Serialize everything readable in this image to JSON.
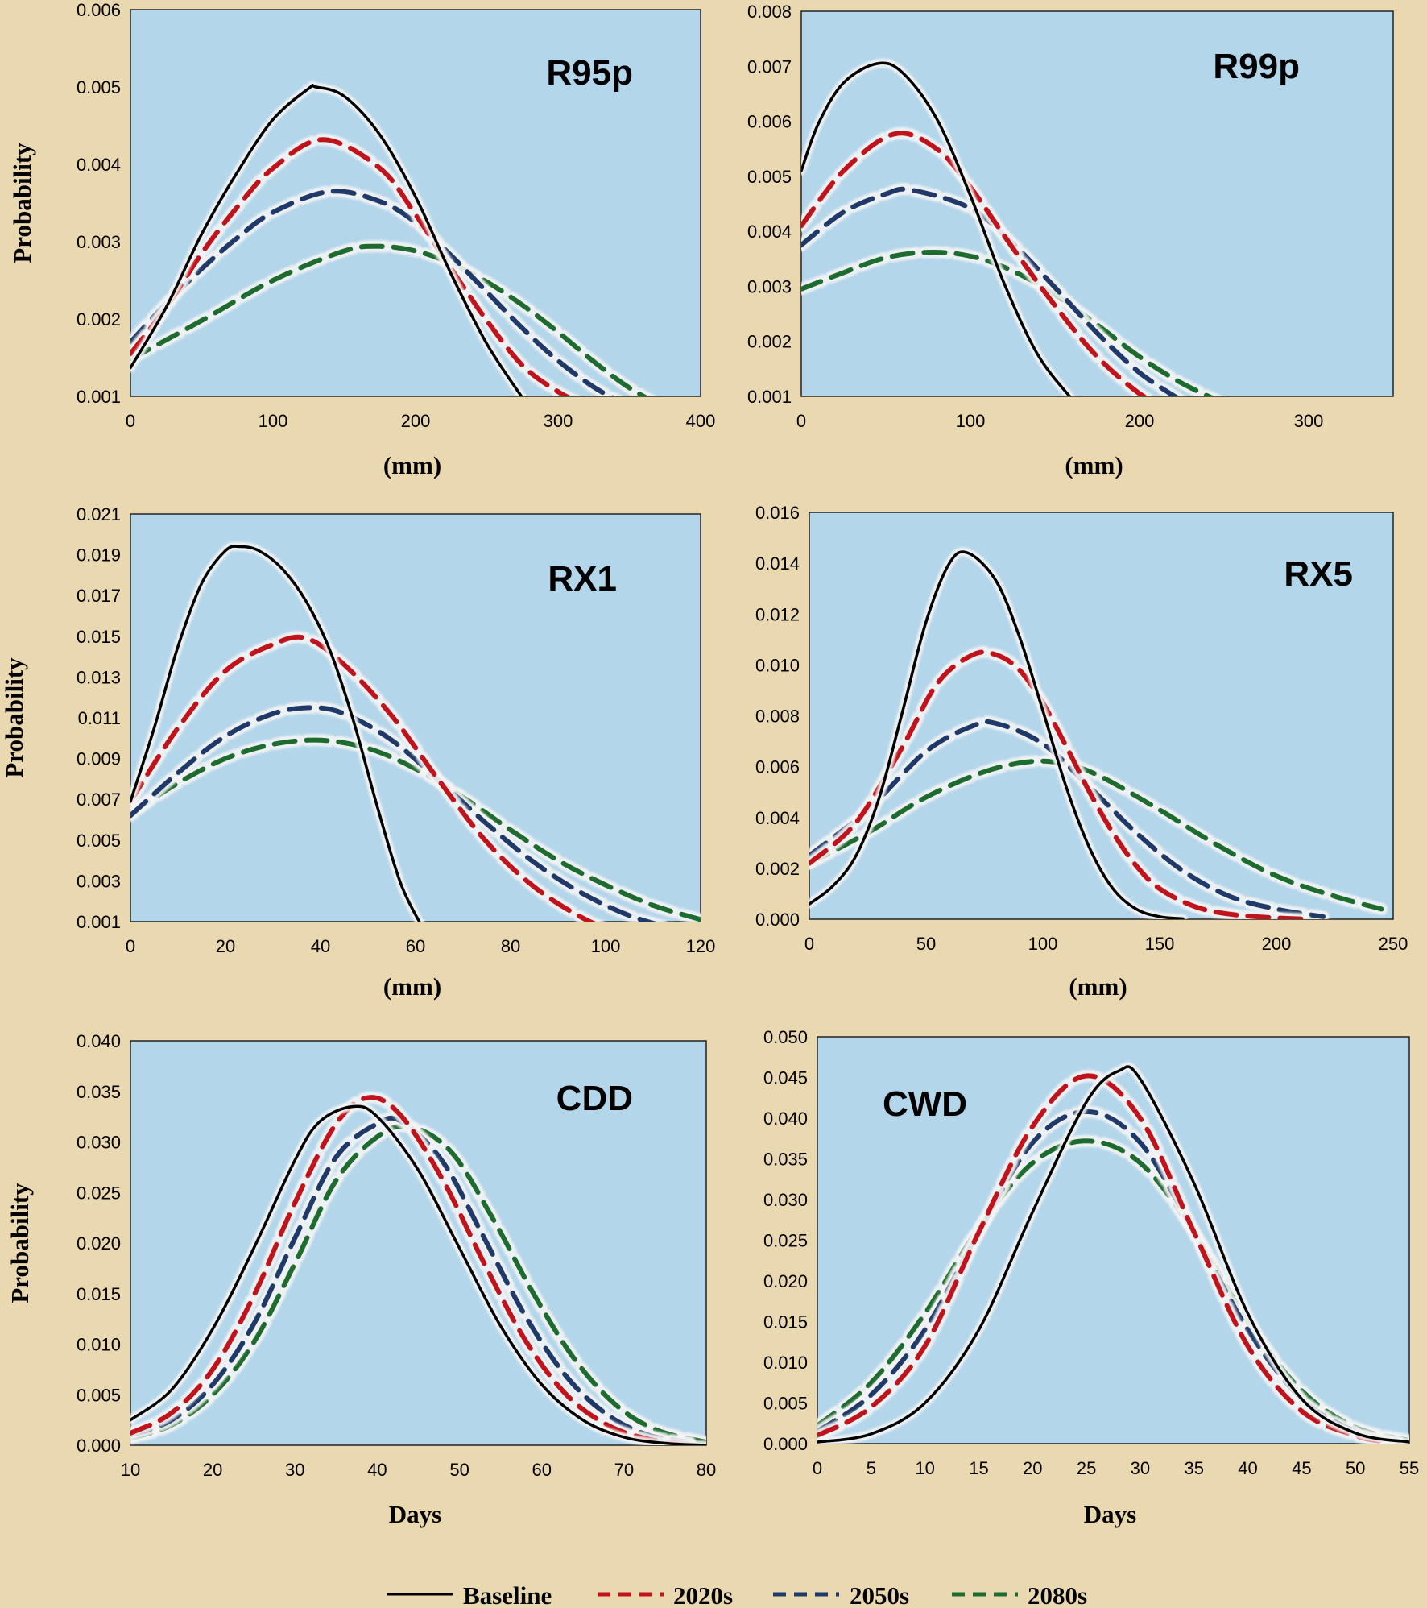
{
  "legend": [
    {
      "name": "Baseline",
      "color": "#000000",
      "dash": "solid"
    },
    {
      "name": "2020s",
      "color": "#C0141C",
      "dash": "dashed"
    },
    {
      "name": "2050s",
      "color": "#1F3A68",
      "dash": "dashed"
    },
    {
      "name": "2080s",
      "color": "#1E6B2F",
      "dash": "dashed"
    }
  ],
  "colors": {
    "figure_background": "#EAD9B0",
    "plot_background": "#B4D6EA"
  },
  "chart_data": [
    {
      "type": "line",
      "title": "R95p",
      "xlabel": "(mm)",
      "ylabel": "Probability",
      "xlim": [
        0,
        400
      ],
      "ylim": [
        0.001,
        0.006
      ],
      "xticks": [
        "0",
        "100",
        "200",
        "300",
        "400"
      ],
      "yticks": [
        "0.001",
        "0.002",
        "0.003",
        "0.004",
        "0.005",
        "0.006"
      ],
      "series": [
        {
          "name": "Baseline",
          "x": [
            0,
            25,
            50,
            75,
            100,
            125,
            130,
            150,
            175,
            200,
            225,
            250,
            275
          ],
          "y": [
            0.00137,
            0.00215,
            0.0031,
            0.0039,
            0.00458,
            0.00498,
            0.005,
            0.00488,
            0.00438,
            0.00358,
            0.00258,
            0.00168,
            0.00098
          ]
        },
        {
          "name": "2020s",
          "x": [
            0,
            25,
            50,
            75,
            100,
            135,
            175,
            200,
            225,
            250,
            275,
            300,
            320
          ],
          "y": [
            0.00155,
            0.00215,
            0.00285,
            0.00345,
            0.00395,
            0.00432,
            0.00395,
            0.00335,
            0.00265,
            0.00198,
            0.0014,
            0.00106,
            0.00088
          ]
        },
        {
          "name": "2050s",
          "x": [
            0,
            25,
            50,
            75,
            100,
            140,
            175,
            200,
            225,
            250,
            275,
            300,
            325,
            345
          ],
          "y": [
            0.0017,
            0.0022,
            0.00265,
            0.00305,
            0.00338,
            0.00365,
            0.00352,
            0.00325,
            0.00282,
            0.00235,
            0.00188,
            0.00146,
            0.00112,
            0.00092
          ]
        },
        {
          "name": "2080s",
          "x": [
            0,
            50,
            100,
            150,
            175,
            200,
            225,
            250,
            275,
            300,
            325,
            350,
            375
          ],
          "y": [
            0.00148,
            0.00198,
            0.0025,
            0.00288,
            0.00294,
            0.00288,
            0.00272,
            0.00248,
            0.00218,
            0.00183,
            0.00145,
            0.00111,
            0.00085
          ]
        }
      ]
    },
    {
      "type": "line",
      "title": "R99p",
      "xlabel": "(mm)",
      "ylabel": "",
      "xlim": [
        0,
        350
      ],
      "ylim": [
        0.001,
        0.008
      ],
      "xticks": [
        "0",
        "100",
        "200",
        "300"
      ],
      "yticks": [
        "0.001",
        "0.002",
        "0.003",
        "0.004",
        "0.005",
        "0.006",
        "0.007",
        "0.008"
      ],
      "series": [
        {
          "name": "Baseline",
          "x": [
            0,
            10,
            25,
            45,
            60,
            80,
            100,
            120,
            140,
            160
          ],
          "y": [
            0.0051,
            0.00595,
            0.0067,
            0.00705,
            0.00688,
            0.00605,
            0.00465,
            0.00305,
            0.00175,
            0.00095
          ]
        },
        {
          "name": "2020s",
          "x": [
            0,
            25,
            55,
            80,
            100,
            125,
            150,
            175,
            200,
            215
          ],
          "y": [
            0.0041,
            0.0051,
            0.00577,
            0.0055,
            0.0048,
            0.0037,
            0.00265,
            0.00172,
            0.00105,
            0.00082
          ]
        },
        {
          "name": "2050s",
          "x": [
            0,
            25,
            50,
            65,
            100,
            125,
            150,
            175,
            200,
            225
          ],
          "y": [
            0.00375,
            0.00435,
            0.00468,
            0.00475,
            0.00442,
            0.00378,
            0.00298,
            0.00215,
            0.00143,
            0.00092
          ]
        },
        {
          "name": "2080s",
          "x": [
            0,
            25,
            50,
            75,
            100,
            125,
            150,
            175,
            200,
            225,
            255
          ],
          "y": [
            0.00295,
            0.00325,
            0.00352,
            0.00362,
            0.00355,
            0.00328,
            0.00285,
            0.0023,
            0.00172,
            0.00124,
            0.0008
          ]
        }
      ]
    },
    {
      "type": "line",
      "title": "RX1",
      "xlabel": "(mm)",
      "ylabel": "Probability",
      "xlim": [
        0,
        120
      ],
      "ylim": [
        0.001,
        0.021
      ],
      "xticks": [
        "0",
        "20",
        "40",
        "60",
        "80",
        "100",
        "120"
      ],
      "yticks": [
        "0.001",
        "0.003",
        "0.005",
        "0.007",
        "0.009",
        "0.011",
        "0.013",
        "0.015",
        "0.017",
        "0.019",
        "0.021"
      ],
      "series": [
        {
          "name": "Baseline",
          "x": [
            0,
            5,
            10,
            15,
            20,
            23,
            27,
            32,
            37,
            42,
            47,
            52,
            57,
            62
          ],
          "y": [
            0.0069,
            0.0105,
            0.0145,
            0.0176,
            0.0192,
            0.0194,
            0.0192,
            0.0183,
            0.0167,
            0.0143,
            0.0108,
            0.0066,
            0.0028,
            0.0005
          ]
        },
        {
          "name": "2020s",
          "x": [
            0,
            10,
            20,
            30,
            37,
            45,
            55,
            65,
            75,
            85,
            95,
            102
          ],
          "y": [
            0.0069,
            0.0105,
            0.0133,
            0.0146,
            0.0149,
            0.0136,
            0.0111,
            0.0079,
            0.0049,
            0.0027,
            0.0012,
            0.0005
          ]
        },
        {
          "name": "2050s",
          "x": [
            0,
            10,
            20,
            30,
            38,
            45,
            55,
            65,
            75,
            85,
            95,
            105,
            115
          ],
          "y": [
            0.0062,
            0.0083,
            0.0101,
            0.0112,
            0.0115,
            0.0112,
            0.0099,
            0.0079,
            0.0058,
            0.0039,
            0.0024,
            0.0013,
            0.0006
          ]
        },
        {
          "name": "2080s",
          "x": [
            0,
            10,
            20,
            30,
            40,
            50,
            60,
            70,
            80,
            90,
            100,
            110,
            120
          ],
          "y": [
            0.0063,
            0.0078,
            0.009,
            0.0097,
            0.0099,
            0.0095,
            0.0085,
            0.0071,
            0.0055,
            0.004,
            0.0028,
            0.0018,
            0.0011
          ]
        }
      ]
    },
    {
      "type": "line",
      "title": "RX5",
      "xlabel": "(mm)",
      "ylabel": "",
      "xlim": [
        0,
        250
      ],
      "ylim": [
        0,
        0.016
      ],
      "xticks": [
        "0",
        "50",
        "100",
        "150",
        "200",
        "250"
      ],
      "yticks": [
        "0.000",
        "0.002",
        "0.004",
        "0.006",
        "0.008",
        "0.010",
        "0.012",
        "0.014",
        "0.016"
      ],
      "series": [
        {
          "name": "Baseline",
          "x": [
            0,
            10,
            20,
            30,
            40,
            50,
            60,
            68,
            80,
            90,
            100,
            110,
            120,
            130,
            140,
            150,
            160
          ],
          "y": [
            0.0006,
            0.0013,
            0.0025,
            0.0048,
            0.0082,
            0.0117,
            0.014,
            0.0144,
            0.0133,
            0.0111,
            0.0082,
            0.0052,
            0.0028,
            0.0012,
            0.0004,
            0.0001,
            2e-05
          ]
        },
        {
          "name": "2020s",
          "x": [
            0,
            20,
            40,
            55,
            70,
            80,
            90,
            100,
            110,
            120,
            130,
            140,
            150,
            165,
            180,
            200,
            215
          ],
          "y": [
            0.0022,
            0.0038,
            0.0068,
            0.0093,
            0.0104,
            0.0104,
            0.0098,
            0.0085,
            0.0068,
            0.005,
            0.0034,
            0.0021,
            0.0012,
            0.0005,
            0.0002,
            5e-05,
            0.0
          ]
        },
        {
          "name": "2050s",
          "x": [
            0,
            25,
            50,
            70,
            80,
            100,
            120,
            140,
            160,
            180,
            200,
            220
          ],
          "y": [
            0.0025,
            0.0043,
            0.0066,
            0.0076,
            0.0077,
            0.0069,
            0.0052,
            0.0034,
            0.0019,
            0.0009,
            0.0004,
            0.0001
          ]
        },
        {
          "name": "2080s",
          "x": [
            0,
            25,
            50,
            75,
            95,
            110,
            125,
            150,
            175,
            200,
            225,
            245
          ],
          "y": [
            0.0022,
            0.0034,
            0.0048,
            0.0058,
            0.0062,
            0.0061,
            0.0056,
            0.0043,
            0.0029,
            0.0017,
            0.0009,
            0.0004
          ]
        }
      ]
    },
    {
      "type": "line",
      "title": "CDD",
      "xlabel": "Days",
      "ylabel": "Probability",
      "xlim": [
        10,
        80
      ],
      "ylim": [
        0,
        0.04
      ],
      "xticks": [
        "10",
        "20",
        "30",
        "40",
        "50",
        "60",
        "70",
        "80"
      ],
      "yticks": [
        "0.000",
        "0.005",
        "0.010",
        "0.015",
        "0.020",
        "0.025",
        "0.030",
        "0.035",
        "0.040"
      ],
      "series": [
        {
          "name": "Baseline",
          "x": [
            10,
            15,
            20,
            25,
            30,
            33,
            37,
            40,
            45,
            50,
            55,
            60,
            65,
            70,
            75,
            80
          ],
          "y": [
            0.0025,
            0.0055,
            0.0115,
            0.0195,
            0.0282,
            0.032,
            0.0335,
            0.0325,
            0.0272,
            0.0195,
            0.0118,
            0.006,
            0.0025,
            0.0008,
            0.0002,
            0.0
          ]
        },
        {
          "name": "2020s",
          "x": [
            10,
            15,
            20,
            25,
            30,
            35,
            39,
            43,
            48,
            53,
            58,
            63,
            68,
            73,
            78
          ],
          "y": [
            0.0012,
            0.0032,
            0.0075,
            0.0148,
            0.024,
            0.0318,
            0.0344,
            0.0325,
            0.0262,
            0.018,
            0.0104,
            0.005,
            0.002,
            0.0006,
            0.0001
          ]
        },
        {
          "name": "2050s",
          "x": [
            10,
            15,
            20,
            25,
            30,
            35,
            40,
            43,
            48,
            53,
            58,
            63,
            68,
            73,
            78
          ],
          "y": [
            0.001,
            0.0025,
            0.006,
            0.012,
            0.0205,
            0.0285,
            0.0318,
            0.032,
            0.028,
            0.0205,
            0.0128,
            0.0068,
            0.003,
            0.001,
            0.0003
          ]
        },
        {
          "name": "2080s",
          "x": [
            10,
            15,
            20,
            25,
            30,
            35,
            40,
            44,
            49,
            54,
            59,
            64,
            69,
            74,
            80
          ],
          "y": [
            0.0007,
            0.002,
            0.005,
            0.0102,
            0.018,
            0.0262,
            0.0305,
            0.0315,
            0.029,
            0.0225,
            0.015,
            0.0085,
            0.004,
            0.0015,
            0.0003
          ]
        }
      ]
    },
    {
      "type": "line",
      "title": "CWD",
      "xlabel": "Days",
      "ylabel": "",
      "xlim": [
        0,
        55
      ],
      "ylim": [
        0,
        0.05
      ],
      "xticks": [
        "0",
        "5",
        "10",
        "15",
        "20",
        "25",
        "30",
        "35",
        "40",
        "45",
        "50",
        "55"
      ],
      "yticks": [
        "0.000",
        "0.005",
        "0.010",
        "0.015",
        "0.020",
        "0.025",
        "0.030",
        "0.035",
        "0.040",
        "0.045",
        "0.050"
      ],
      "series": [
        {
          "name": "Baseline",
          "x": [
            0,
            5,
            10,
            15,
            20,
            25,
            28,
            30,
            35,
            40,
            45,
            50,
            55
          ],
          "y": [
            0.0002,
            0.0012,
            0.005,
            0.014,
            0.0285,
            0.042,
            0.0458,
            0.0448,
            0.032,
            0.016,
            0.0055,
            0.0013,
            0.0002
          ]
        },
        {
          "name": "2020s",
          "x": [
            0,
            5,
            10,
            15,
            20,
            25,
            30,
            35,
            40,
            45,
            50,
            53
          ],
          "y": [
            0.001,
            0.0045,
            0.012,
            0.026,
            0.039,
            0.0452,
            0.04,
            0.026,
            0.012,
            0.004,
            0.001,
            0.0002
          ]
        },
        {
          "name": "2050s",
          "x": [
            0,
            5,
            10,
            15,
            20,
            25,
            30,
            35,
            40,
            45,
            50,
            54
          ],
          "y": [
            0.0015,
            0.006,
            0.014,
            0.026,
            0.037,
            0.0408,
            0.037,
            0.026,
            0.014,
            0.0055,
            0.0015,
            0.0003
          ]
        },
        {
          "name": "2080s",
          "x": [
            0,
            5,
            10,
            15,
            20,
            25,
            30,
            35,
            40,
            45,
            50,
            55
          ],
          "y": [
            0.0022,
            0.0075,
            0.016,
            0.0265,
            0.0345,
            0.0372,
            0.0345,
            0.026,
            0.015,
            0.0065,
            0.002,
            0.0004
          ]
        }
      ]
    }
  ]
}
